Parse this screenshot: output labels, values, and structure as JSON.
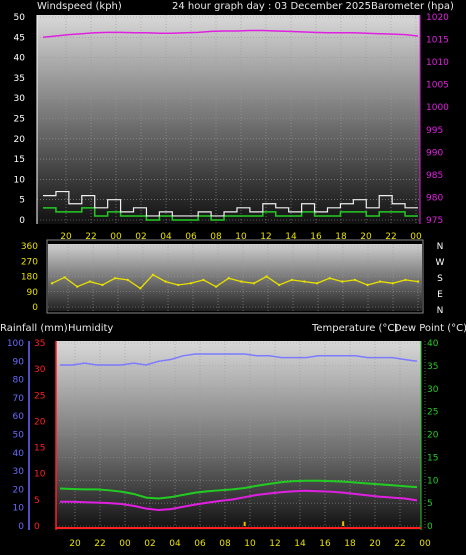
{
  "header": {
    "wind_title": "Windspeed (kph)",
    "graph_title": "24 hour graph day : 03 December 2025",
    "baro_title": "Barometer (hpa)",
    "rain_title": "Rainfall (mm)",
    "humidity_title": "Humidity",
    "temp_title": "Temperature (°C)",
    "dew_title": "Dew Point (°C)"
  },
  "colors": {
    "wind": "#f0f0f0",
    "gust": "#22cc22",
    "baro": "#e020e0",
    "dir": "#e8e000",
    "humidity": "#7b7bff",
    "temp": "#22cc22",
    "dew": "#e020e0",
    "rain": "#e8c000",
    "rain_axis": "#ff2020",
    "hum_axis": "#6a6aff",
    "temp_axis": "#22cc22",
    "baro_axis": "#e020e0"
  },
  "compass_labels": [
    "N",
    "W",
    "S",
    "E",
    "N"
  ],
  "time_ticks": [
    "20",
    "22",
    "00",
    "02",
    "04",
    "06",
    "08",
    "10",
    "12",
    "14",
    "16",
    "18",
    "20",
    "22",
    "00"
  ],
  "chart_data": [
    {
      "type": "line",
      "name": "wind-baro",
      "x": [
        "19",
        "20",
        "21",
        "22",
        "23",
        "00",
        "01",
        "02",
        "03",
        "04",
        "05",
        "06",
        "07",
        "08",
        "09",
        "10",
        "11",
        "12",
        "13",
        "14",
        "15",
        "16",
        "17",
        "18",
        "19",
        "20",
        "21",
        "22",
        "23",
        "00"
      ],
      "left_ticks": [
        0,
        5,
        10,
        15,
        20,
        25,
        30,
        35,
        40,
        45,
        50
      ],
      "right_ticks": [
        975,
        980,
        985,
        990,
        995,
        1000,
        1005,
        1010,
        1015,
        1020
      ],
      "series": [
        {
          "key": "wind",
          "values": [
            6,
            7,
            4,
            6,
            3,
            5,
            2,
            3,
            1,
            2,
            1,
            1,
            2,
            1,
            2,
            3,
            2,
            4,
            3,
            2,
            4,
            2,
            3,
            4,
            5,
            3,
            6,
            4,
            3,
            3
          ]
        },
        {
          "key": "gust",
          "values": [
            3,
            2,
            2,
            3,
            1,
            2,
            1,
            1,
            0,
            1,
            0,
            0,
            1,
            0,
            1,
            1,
            1,
            2,
            1,
            1,
            2,
            1,
            1,
            2,
            2,
            1,
            2,
            2,
            1,
            1
          ]
        },
        {
          "key": "baro",
          "values": [
            1015.5,
            1015.8,
            1016.1,
            1016.3,
            1016.5,
            1016.6,
            1016.6,
            1016.5,
            1016.5,
            1016.4,
            1016.4,
            1016.5,
            1016.6,
            1016.8,
            1016.9,
            1016.9,
            1017.0,
            1017.0,
            1016.9,
            1016.8,
            1016.7,
            1016.6,
            1016.5,
            1016.5,
            1016.5,
            1016.4,
            1016.3,
            1016.2,
            1016.1,
            1015.8
          ]
        }
      ]
    },
    {
      "type": "scatter",
      "name": "wind-direction",
      "left_ticks": [
        0,
        90,
        180,
        270,
        360
      ],
      "x": [
        "19",
        "20",
        "21",
        "22",
        "23",
        "00",
        "01",
        "02",
        "03",
        "04",
        "05",
        "06",
        "07",
        "08",
        "09",
        "10",
        "11",
        "12",
        "13",
        "14",
        "15",
        "16",
        "17",
        "18",
        "19",
        "20",
        "21",
        "22",
        "23",
        "00"
      ],
      "values": [
        140,
        175,
        120,
        150,
        130,
        170,
        160,
        110,
        190,
        150,
        130,
        140,
        160,
        120,
        170,
        150,
        140,
        180,
        130,
        160,
        150,
        140,
        170,
        150,
        160,
        130,
        150,
        140,
        160,
        150
      ]
    },
    {
      "type": "line",
      "name": "rain-humidity-temp",
      "x": [
        "19",
        "20",
        "21",
        "22",
        "23",
        "00",
        "01",
        "02",
        "03",
        "04",
        "05",
        "06",
        "07",
        "08",
        "09",
        "10",
        "11",
        "12",
        "13",
        "14",
        "15",
        "16",
        "17",
        "18",
        "19",
        "20",
        "21",
        "22",
        "23",
        "00"
      ],
      "rain_ticks": [
        0,
        5,
        10,
        15,
        20,
        25,
        30,
        35
      ],
      "hum_ticks": [
        0,
        10,
        20,
        30,
        40,
        50,
        60,
        70,
        80,
        90,
        100
      ],
      "temp_ticks": [
        0,
        5,
        10,
        15,
        20,
        25,
        30,
        35,
        40
      ],
      "series": [
        {
          "key": "humidity",
          "values": [
            88,
            88,
            89,
            88,
            88,
            88,
            89,
            88,
            90,
            91,
            93,
            94,
            94,
            94,
            94,
            94,
            93,
            93,
            92,
            92,
            92,
            93,
            93,
            93,
            93,
            92,
            92,
            92,
            91,
            90
          ]
        },
        {
          "key": "temp",
          "values": [
            8.2,
            8.1,
            8.0,
            8.0,
            7.8,
            7.5,
            7.0,
            6.2,
            6.0,
            6.3,
            6.8,
            7.3,
            7.6,
            7.8,
            8.0,
            8.3,
            8.8,
            9.2,
            9.6,
            9.8,
            9.9,
            9.9,
            9.8,
            9.7,
            9.5,
            9.3,
            9.1,
            8.9,
            8.7,
            8.5
          ]
        },
        {
          "key": "dew",
          "values": [
            5.3,
            5.3,
            5.2,
            5.1,
            5.0,
            4.8,
            4.4,
            3.8,
            3.5,
            3.7,
            4.2,
            4.7,
            5.1,
            5.5,
            5.8,
            6.3,
            6.8,
            7.1,
            7.4,
            7.6,
            7.7,
            7.6,
            7.5,
            7.3,
            7.0,
            6.7,
            6.4,
            6.2,
            6.0,
            5.6
          ]
        },
        {
          "key": "rain",
          "values": [
            0,
            0,
            0,
            0,
            0,
            0,
            0,
            0,
            0,
            0,
            0,
            0,
            0,
            0,
            0,
            0.8,
            0,
            0,
            0,
            0,
            0,
            0,
            0,
            0.9,
            0,
            0,
            0,
            0,
            0,
            0
          ]
        }
      ]
    }
  ]
}
